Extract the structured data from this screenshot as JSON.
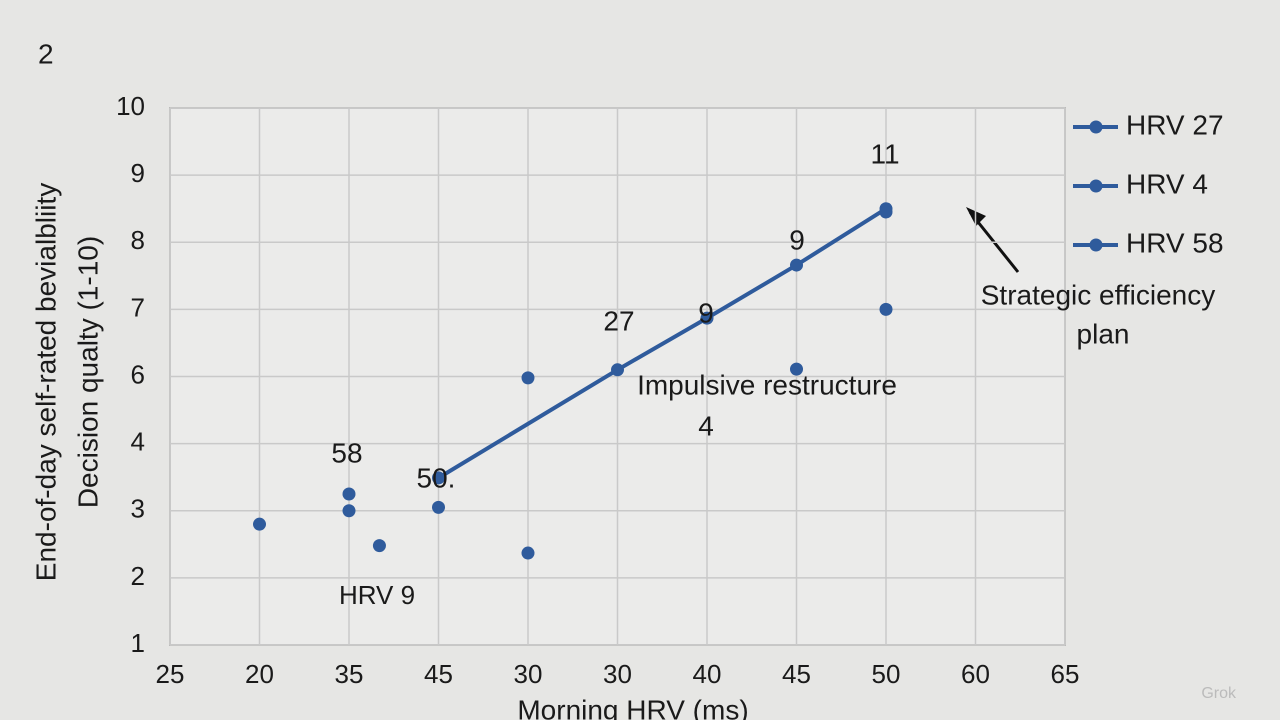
{
  "chart_data": {
    "type": "scatter",
    "page_number": "2",
    "x_label": "Morning HRV (ms)",
    "y_label": [
      "End-of-day self-rated bevialbliity",
      "Decision qualty (1-10)"
    ],
    "xlim": [
      25,
      75
    ],
    "xticks": [
      25,
      {
        "value": 30,
        "label": "20"
      },
      35,
      {
        "value": 40,
        "label": "45"
      },
      {
        "value": 45,
        "label": "30"
      },
      {
        "value": 50,
        "label": "30"
      },
      {
        "value": 55,
        "label": "40"
      },
      {
        "value": 60,
        "label": "45"
      },
      {
        "value": 65,
        "label": "50"
      },
      {
        "value": 70,
        "label": "60"
      },
      {
        "value": 75,
        "label": "65"
      }
    ],
    "ylim": [
      1,
      9
    ],
    "yticks": [
      1,
      2,
      3,
      4,
      {
        "value": 5,
        "label": "6"
      },
      {
        "value": 6,
        "label": "7"
      },
      {
        "value": 7,
        "label": "8"
      },
      {
        "value": 8,
        "label": "9"
      },
      {
        "value": 9,
        "label": "10"
      }
    ],
    "grid": true,
    "series": [
      {
        "name": "HRV 27",
        "color": "#2f5b9c",
        "line": true,
        "x": [
          40,
          50,
          55,
          60,
          65
        ],
        "values": [
          3.49,
          5.1,
          5.87,
          6.66,
          7.5
        ]
      },
      {
        "name": "HRV 4",
        "color": "#2f5b9c",
        "line": false,
        "x": [
          30,
          35,
          35,
          40,
          45,
          60,
          65
        ],
        "values": [
          2.8,
          3.25,
          3.0,
          3.05,
          4.98,
          5.11,
          7.45
        ]
      },
      {
        "name": "HRV 58",
        "color": "#2f5b9c",
        "line": false,
        "x": [
          36.7,
          45,
          65
        ],
        "values": [
          2.48,
          2.37,
          6.0
        ]
      }
    ],
    "annotations": [
      "11",
      "9",
      "27",
      "9",
      "58",
      "50.",
      "Impulsive restructure",
      "4",
      "HRV 9",
      "Strategic efficiency",
      "plan"
    ],
    "watermark": "Grok"
  }
}
